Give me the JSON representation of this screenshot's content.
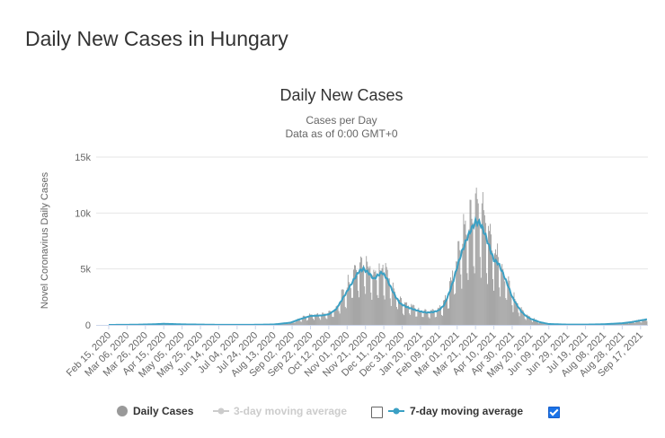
{
  "page": {
    "title": "Daily New Cases in Hungary"
  },
  "chart_data": {
    "type": "bar",
    "title": "Daily New Cases",
    "subtitle": "Cases per Day",
    "subtitle2": "Data as of 0:00 GMT+0",
    "ylabel": "Novel Coronavirus Daily Cases",
    "xlabel": "",
    "ylim": [
      0,
      15000
    ],
    "y_ticks": [
      0,
      5000,
      10000,
      15000
    ],
    "y_tick_labels": [
      "0",
      "5k",
      "10k",
      "15k"
    ],
    "x_ticks": [
      "Feb 15, 2020",
      "Mar 06, 2020",
      "Mar 26, 2020",
      "Apr 15, 2020",
      "May 05, 2020",
      "May 25, 2020",
      "Jun 14, 2020",
      "Jul 04, 2020",
      "Jul 24, 2020",
      "Aug 13, 2020",
      "Sep 02, 2020",
      "Sep 22, 2020",
      "Oct 12, 2020",
      "Nov 01, 2020",
      "Nov 21, 2020",
      "Dec 11, 2020",
      "Dec 31, 2020",
      "Jan 20, 2021",
      "Feb 09, 2021",
      "Mar 01, 2021",
      "Mar 21, 2021",
      "Apr 10, 2021",
      "Apr 30, 2021",
      "May 20, 2021",
      "Jun 09, 2021",
      "Jun 29, 2021",
      "Jul 19, 2021",
      "Aug 08, 2021",
      "Aug 28, 2021",
      "Sep 17, 2021"
    ],
    "x_start": "2020-02-15",
    "grid": true,
    "legend_position": "bottom",
    "series": [
      {
        "name": "Daily Cases",
        "type": "bar",
        "color": "#999999",
        "enabled": true
      },
      {
        "name": "3-day moving average",
        "type": "line",
        "color": "#cccccc",
        "enabled": false
      },
      {
        "name": "7-day moving average",
        "type": "line",
        "color": "#3ba0c4",
        "enabled": true
      }
    ],
    "seven_day_avg_points": [
      [
        "2020-02-15",
        0
      ],
      [
        "2020-03-16",
        20
      ],
      [
        "2020-04-05",
        60
      ],
      [
        "2020-04-15",
        100
      ],
      [
        "2020-05-05",
        50
      ],
      [
        "2020-06-14",
        10
      ],
      [
        "2020-07-24",
        15
      ],
      [
        "2020-08-13",
        40
      ],
      [
        "2020-08-31",
        200
      ],
      [
        "2020-09-12",
        550
      ],
      [
        "2020-09-22",
        800
      ],
      [
        "2020-10-05",
        850
      ],
      [
        "2020-10-12",
        950
      ],
      [
        "2020-10-20",
        1400
      ],
      [
        "2020-10-26",
        2200
      ],
      [
        "2020-11-01",
        3000
      ],
      [
        "2020-11-08",
        4000
      ],
      [
        "2020-11-14",
        4800
      ],
      [
        "2020-11-19",
        5000
      ],
      [
        "2020-11-25",
        4600
      ],
      [
        "2020-11-30",
        4100
      ],
      [
        "2020-12-04",
        4400
      ],
      [
        "2020-12-09",
        4700
      ],
      [
        "2020-12-14",
        4200
      ],
      [
        "2020-12-19",
        3300
      ],
      [
        "2020-12-24",
        2500
      ],
      [
        "2020-12-29",
        1900
      ],
      [
        "2021-01-05",
        1600
      ],
      [
        "2021-01-12",
        1400
      ],
      [
        "2021-01-20",
        1200
      ],
      [
        "2021-01-27",
        1100
      ],
      [
        "2021-02-03",
        1150
      ],
      [
        "2021-02-09",
        1300
      ],
      [
        "2021-02-15",
        1800
      ],
      [
        "2021-02-20",
        2800
      ],
      [
        "2021-02-25",
        4000
      ],
      [
        "2021-03-01",
        5200
      ],
      [
        "2021-03-06",
        6500
      ],
      [
        "2021-03-11",
        7600
      ],
      [
        "2021-03-16",
        8500
      ],
      [
        "2021-03-21",
        9200
      ],
      [
        "2021-03-26",
        9100
      ],
      [
        "2021-03-31",
        8200
      ],
      [
        "2021-04-05",
        7000
      ],
      [
        "2021-04-10",
        5800
      ],
      [
        "2021-04-15",
        5500
      ],
      [
        "2021-04-20",
        4600
      ],
      [
        "2021-04-25",
        3600
      ],
      [
        "2021-04-30",
        2500
      ],
      [
        "2021-05-05",
        1800
      ],
      [
        "2021-05-10",
        1200
      ],
      [
        "2021-05-15",
        800
      ],
      [
        "2021-05-20",
        550
      ],
      [
        "2021-05-30",
        250
      ],
      [
        "2021-06-09",
        80
      ],
      [
        "2021-06-29",
        30
      ],
      [
        "2021-07-19",
        30
      ],
      [
        "2021-08-08",
        60
      ],
      [
        "2021-08-28",
        150
      ],
      [
        "2021-09-07",
        250
      ],
      [
        "2021-09-17",
        400
      ],
      [
        "2021-09-24",
        500
      ]
    ]
  }
}
